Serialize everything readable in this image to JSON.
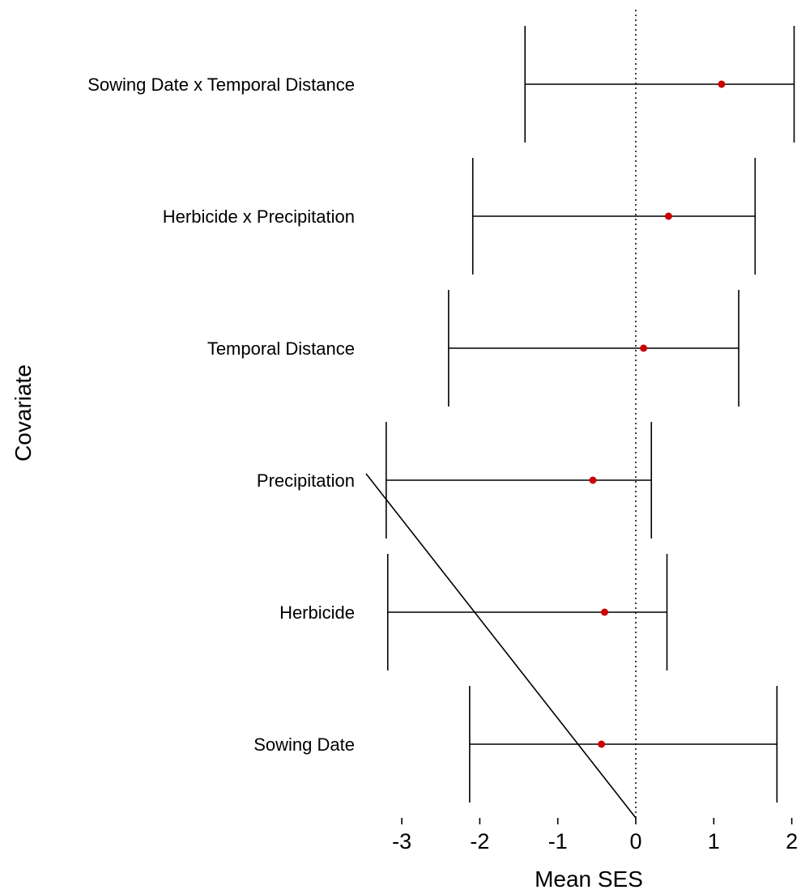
{
  "chart_data": {
    "type": "forest",
    "title": "",
    "xlabel": "Mean SES",
    "ylabel": "Covariate",
    "xlim": [
      -3.2,
      2.0
    ],
    "xticks": [
      -3,
      -2,
      -1,
      0,
      1,
      2
    ],
    "reference_line": 0,
    "grid": false,
    "point_color": "#cc0000",
    "categories": [
      "Sowing Date x Temporal Distance",
      "Herbicide x Precipitation",
      "Temporal Distance",
      "Precipitation",
      "Herbicide",
      "Sowing Date"
    ],
    "mean": [
      1.1,
      0.42,
      0.1,
      -0.55,
      -0.4,
      -0.44
    ],
    "lower": [
      -1.42,
      -2.09,
      -2.4,
      -3.2,
      -3.18,
      -2.13
    ],
    "upper": [
      2.03,
      1.53,
      1.32,
      0.2,
      0.4,
      1.81
    ]
  }
}
